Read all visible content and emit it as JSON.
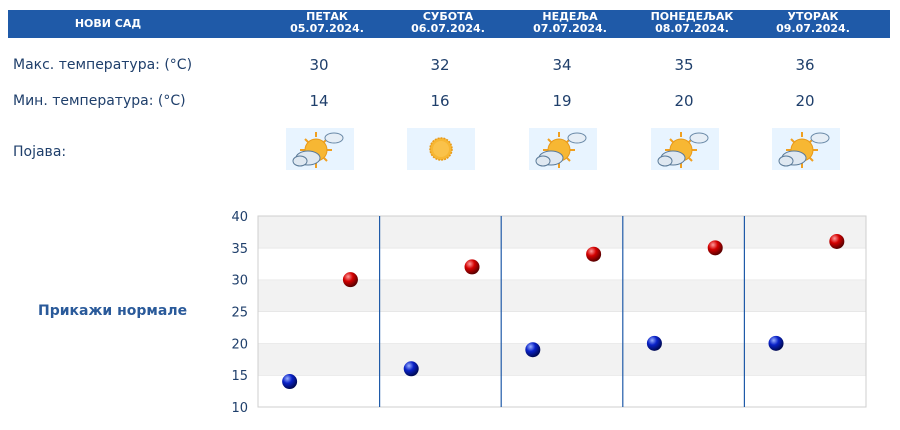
{
  "header": {
    "city": "НОВИ САД",
    "days": [
      {
        "name": "ПЕТАК",
        "date": "05.07.2024."
      },
      {
        "name": "СУБОТА",
        "date": "06.07.2024."
      },
      {
        "name": "НЕДЕЉА",
        "date": "07.07.2024."
      },
      {
        "name": "ПОНЕДЕЉАК",
        "date": "08.07.2024."
      },
      {
        "name": "УТОРАК",
        "date": "09.07.2024."
      }
    ]
  },
  "rows": {
    "max_label": "Макс. температура: (°C)",
    "min_label": "Мин. температура: (°C)",
    "phenomenon_label": "Појава:"
  },
  "values": {
    "max": [
      "30",
      "32",
      "34",
      "35",
      "36"
    ],
    "min": [
      "14",
      "16",
      "19",
      "20",
      "20"
    ]
  },
  "icons": [
    "sun-cloud-icon",
    "sun-icon",
    "sun-cloud-icon",
    "sun-cloud-icon",
    "sun-cloud-icon"
  ],
  "normals_link": "Прикажи нормале",
  "colors": {
    "header_bg": "#1f5aa8",
    "max_marker": "#cc0000",
    "min_marker": "#0a1fb8",
    "text": "#1f3f6b"
  },
  "chart_data": {
    "type": "scatter",
    "categories": [
      "05.07.2024.",
      "06.07.2024.",
      "07.07.2024.",
      "08.07.2024.",
      "09.07.2024."
    ],
    "series": [
      {
        "values": [
          30,
          32,
          34,
          35,
          36
        ]
      },
      {
        "values": [
          14,
          16,
          19,
          20,
          20
        ]
      }
    ],
    "ylim": [
      10,
      40
    ],
    "yticks": [
      "10",
      "15",
      "20",
      "25",
      "30",
      "35",
      "40"
    ],
    "grid": true
  }
}
